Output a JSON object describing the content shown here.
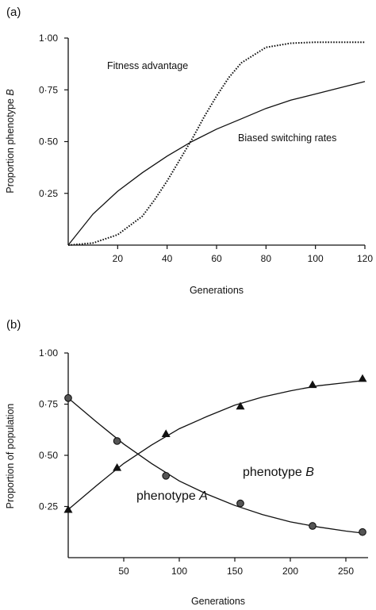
{
  "chart_data": [
    {
      "type": "line",
      "panel_label": "(a)",
      "xlabel": "Generations",
      "ylabel": "Proportion phenotype B",
      "ylabel_main": "Proportion phenotype ",
      "ylabel_italic": "B",
      "xlim": [
        0,
        120
      ],
      "ylim": [
        0,
        1.0
      ],
      "xticks": [
        20,
        40,
        60,
        80,
        100,
        120
      ],
      "xtick_labels": [
        "20",
        "40",
        "60",
        "80",
        "100",
        "120"
      ],
      "yticks": [
        0.25,
        0.5,
        0.75,
        1.0
      ],
      "ytick_labels": [
        "0·25",
        "0·50",
        "0·75",
        "1·00"
      ],
      "grid": false,
      "series": [
        {
          "name": "Fitness advantage",
          "style": "dotted",
          "x": [
            0,
            10,
            20,
            30,
            35,
            40,
            45,
            50,
            55,
            60,
            65,
            70,
            80,
            90,
            100,
            120
          ],
          "y": [
            0,
            0.01,
            0.05,
            0.14,
            0.22,
            0.31,
            0.41,
            0.51,
            0.62,
            0.72,
            0.81,
            0.88,
            0.955,
            0.975,
            0.98,
            0.98
          ]
        },
        {
          "name": "Biased switching rates",
          "style": "solid",
          "x": [
            0,
            10,
            20,
            30,
            40,
            50,
            60,
            70,
            80,
            90,
            100,
            110,
            120
          ],
          "y": [
            0,
            0.15,
            0.26,
            0.35,
            0.43,
            0.5,
            0.56,
            0.61,
            0.66,
            0.7,
            0.73,
            0.76,
            0.79
          ]
        }
      ],
      "annotations": [
        "Fitness advantage",
        "Biased switching rates"
      ]
    },
    {
      "type": "line",
      "panel_label": "(b)",
      "xlabel": "Generations",
      "ylabel": "Proportion of population",
      "xlim": [
        0,
        270
      ],
      "ylim": [
        0,
        1.0
      ],
      "xticks": [
        50,
        100,
        150,
        200,
        250
      ],
      "xtick_labels": [
        "50",
        "100",
        "150",
        "200",
        "250"
      ],
      "yticks": [
        0.25,
        0.5,
        0.75,
        1.0
      ],
      "ytick_labels": [
        "0·25",
        "0·50",
        "0·75",
        "1·00"
      ],
      "grid": false,
      "series": [
        {
          "name": "phenotype A",
          "label_main": "phenotype ",
          "label_italic": "A",
          "marker": "circle",
          "curve_x": [
            0,
            25,
            50,
            75,
            100,
            125,
            150,
            175,
            200,
            225,
            250,
            265
          ],
          "curve_y": [
            0.78,
            0.665,
            0.555,
            0.46,
            0.375,
            0.31,
            0.255,
            0.21,
            0.175,
            0.15,
            0.13,
            0.12
          ],
          "points_x": [
            0,
            44,
            88,
            155,
            220,
            265
          ],
          "points_y": [
            0.78,
            0.57,
            0.4,
            0.265,
            0.155,
            0.125
          ]
        },
        {
          "name": "phenotype B",
          "label_main": "phenotype ",
          "label_italic": "B",
          "marker": "triangle",
          "curve_x": [
            0,
            25,
            50,
            75,
            100,
            125,
            150,
            175,
            200,
            225,
            250,
            265
          ],
          "curve_y": [
            0.235,
            0.35,
            0.46,
            0.55,
            0.63,
            0.69,
            0.745,
            0.785,
            0.815,
            0.84,
            0.855,
            0.865
          ],
          "points_x": [
            0,
            44,
            88,
            155,
            220,
            265
          ],
          "points_y": [
            0.235,
            0.44,
            0.605,
            0.74,
            0.845,
            0.875
          ]
        }
      ]
    }
  ]
}
